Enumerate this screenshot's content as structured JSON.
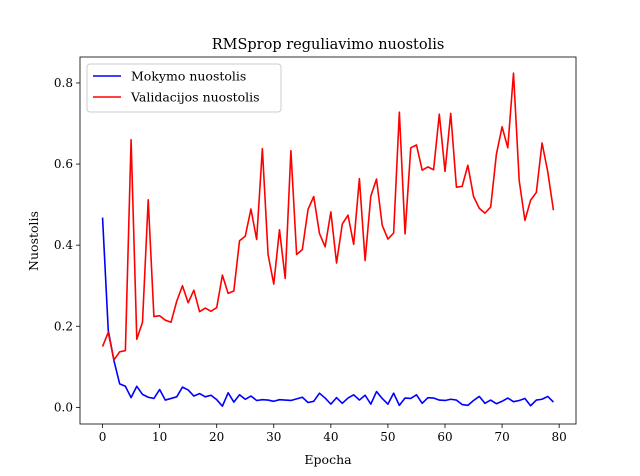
{
  "chart_data": {
    "type": "line",
    "title": "RMSprop reguliavimo nuostolis",
    "xlabel": "Epocha",
    "ylabel": "Nuostolis",
    "xlim": [
      -3.95,
      82.95
    ],
    "ylim": [
      -0.041,
      0.864
    ],
    "xticks": [
      0,
      10,
      20,
      30,
      40,
      50,
      60,
      70,
      80
    ],
    "yticks": [
      0.0,
      0.2,
      0.4,
      0.6,
      0.8
    ],
    "ytick_labels": [
      "0.0",
      "0.2",
      "0.4",
      "0.6",
      "0.8"
    ],
    "grid": false,
    "legend_position": "upper left",
    "series": [
      {
        "name": "Mokymo nuostolis",
        "color": "#0000ff",
        "x": [
          0,
          1,
          2,
          3,
          4,
          5,
          6,
          7,
          8,
          9,
          10,
          11,
          12,
          13,
          14,
          15,
          16,
          17,
          18,
          19,
          20,
          21,
          22,
          23,
          24,
          25,
          26,
          27,
          28,
          29,
          30,
          31,
          32,
          33,
          34,
          35,
          36,
          37,
          38,
          39,
          40,
          41,
          42,
          43,
          44,
          45,
          46,
          47,
          48,
          49,
          50,
          51,
          52,
          53,
          54,
          55,
          56,
          57,
          58,
          59,
          60,
          61,
          62,
          63,
          64,
          65,
          66,
          67,
          68,
          69,
          70,
          71,
          72,
          73,
          74,
          75,
          76,
          77,
          78,
          79
        ],
        "values": [
          0.468,
          0.19,
          0.115,
          0.058,
          0.052,
          0.024,
          0.052,
          0.032,
          0.025,
          0.022,
          0.044,
          0.018,
          0.022,
          0.026,
          0.05,
          0.043,
          0.028,
          0.034,
          0.026,
          0.03,
          0.019,
          0.003,
          0.036,
          0.013,
          0.031,
          0.02,
          0.028,
          0.017,
          0.019,
          0.018,
          0.015,
          0.019,
          0.018,
          0.017,
          0.021,
          0.025,
          0.012,
          0.015,
          0.035,
          0.023,
          0.008,
          0.024,
          0.01,
          0.023,
          0.031,
          0.018,
          0.03,
          0.008,
          0.039,
          0.022,
          0.008,
          0.035,
          0.005,
          0.023,
          0.022,
          0.031,
          0.01,
          0.024,
          0.023,
          0.018,
          0.017,
          0.02,
          0.018,
          0.007,
          0.005,
          0.017,
          0.027,
          0.01,
          0.018,
          0.009,
          0.015,
          0.023,
          0.014,
          0.017,
          0.022,
          0.004,
          0.018,
          0.02,
          0.027,
          0.013
        ]
      },
      {
        "name": "Validacijos nuostolis",
        "color": "#ff0000",
        "x": [
          0,
          1,
          2,
          3,
          4,
          5,
          6,
          7,
          8,
          9,
          10,
          11,
          12,
          13,
          14,
          15,
          16,
          17,
          18,
          19,
          20,
          21,
          22,
          23,
          24,
          25,
          26,
          27,
          28,
          29,
          30,
          31,
          32,
          33,
          34,
          35,
          36,
          37,
          38,
          39,
          40,
          41,
          42,
          43,
          44,
          45,
          46,
          47,
          48,
          49,
          50,
          51,
          52,
          53,
          54,
          55,
          56,
          57,
          58,
          59,
          60,
          61,
          62,
          63,
          64,
          65,
          66,
          67,
          68,
          69,
          70,
          71,
          72,
          73,
          74,
          75,
          76,
          77,
          78,
          79
        ],
        "values": [
          0.15,
          0.185,
          0.117,
          0.137,
          0.14,
          0.66,
          0.168,
          0.21,
          0.512,
          0.224,
          0.226,
          0.215,
          0.21,
          0.262,
          0.3,
          0.258,
          0.289,
          0.236,
          0.245,
          0.237,
          0.246,
          0.326,
          0.281,
          0.287,
          0.411,
          0.422,
          0.489,
          0.414,
          0.638,
          0.377,
          0.304,
          0.438,
          0.318,
          0.633,
          0.377,
          0.389,
          0.488,
          0.52,
          0.429,
          0.396,
          0.482,
          0.356,
          0.452,
          0.474,
          0.402,
          0.564,
          0.362,
          0.521,
          0.563,
          0.449,
          0.415,
          0.43,
          0.728,
          0.428,
          0.64,
          0.647,
          0.585,
          0.593,
          0.586,
          0.723,
          0.582,
          0.725,
          0.543,
          0.545,
          0.597,
          0.52,
          0.491,
          0.479,
          0.494,
          0.624,
          0.692,
          0.64,
          0.824,
          0.559,
          0.461,
          0.511,
          0.53,
          0.652,
          0.581,
          0.486
        ]
      }
    ]
  }
}
